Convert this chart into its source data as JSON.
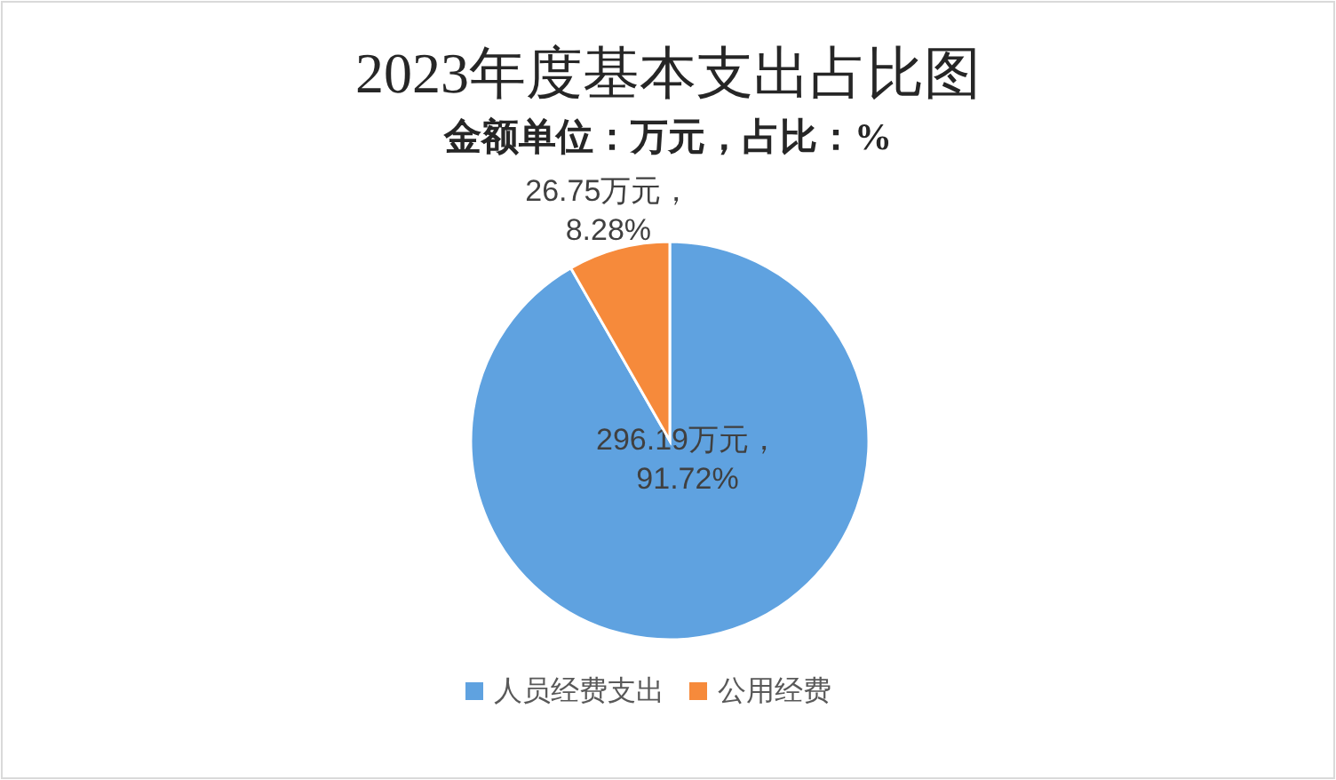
{
  "chart_data": {
    "type": "pie",
    "title": "2023年度基本支出占比图",
    "subtitle": "金额单位：万元，占比：%",
    "categories": [
      "人员经费支出",
      "公用经费"
    ],
    "values": [
      296.19,
      26.75
    ],
    "colors": [
      "#5fa2e0",
      "#f68a3b"
    ],
    "value_labels": [
      "296.19万元，\n91.72%",
      "26.75万元，\n8.28%"
    ],
    "legend": "bottom"
  }
}
